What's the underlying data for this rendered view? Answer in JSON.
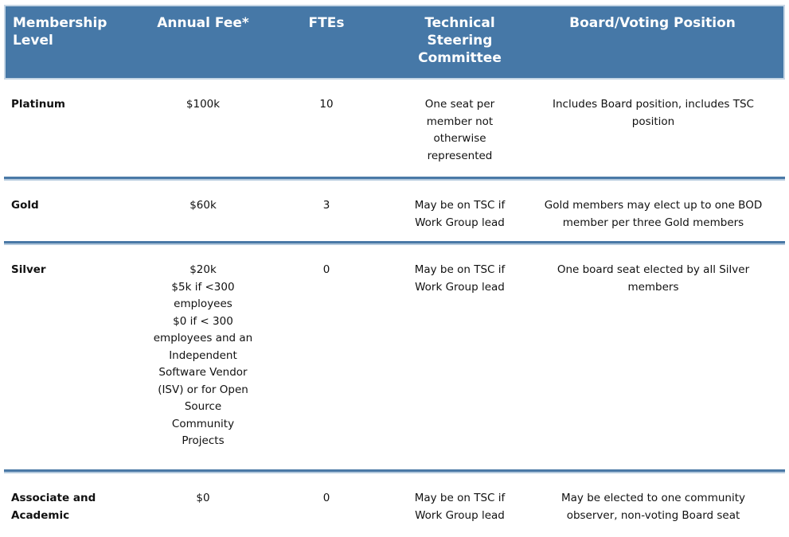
{
  "theme": {
    "header_bg": "#4678a7",
    "header_border": "#c6d6e5",
    "header_text": "#ffffff",
    "separator_dark": "#4a79a6",
    "separator_light": "#b3c9dd",
    "body_text": "#111111",
    "page_bg": "#ffffff"
  },
  "table": {
    "header_columns": [
      {
        "id": "level",
        "lines": [
          "Membership",
          "Level"
        ]
      },
      {
        "id": "fee",
        "lines": [
          "Annual Fee*"
        ]
      },
      {
        "id": "ftes",
        "lines": [
          "FTEs"
        ]
      },
      {
        "id": "tsc",
        "lines": [
          "Technical",
          "Steering",
          "Committee"
        ]
      },
      {
        "id": "board",
        "lines": [
          "Board/Voting Position"
        ]
      }
    ],
    "rows": [
      {
        "level": [
          "Platinum"
        ],
        "fee": [
          "$100k"
        ],
        "ftes": [
          "10"
        ],
        "tsc": [
          "One seat per",
          "member not",
          "otherwise",
          "represented"
        ],
        "board": [
          "Includes Board position, includes TSC",
          "position"
        ]
      },
      {
        "level": [
          "Gold"
        ],
        "fee": [
          "$60k"
        ],
        "ftes": [
          "3"
        ],
        "tsc": [
          "May be on TSC if",
          "Work Group lead"
        ],
        "board": [
          "Gold members may elect up to one BOD",
          "member per three Gold members"
        ]
      },
      {
        "level": [
          "Silver"
        ],
        "fee": [
          "$20k",
          "$5k if <300",
          "employees",
          "$0 if < 300",
          "employees and an",
          "Independent",
          "Software Vendor",
          "(ISV) or for Open",
          "Source",
          "Community",
          "Projects"
        ],
        "ftes": [
          "0"
        ],
        "tsc": [
          "May be on TSC if",
          "Work Group lead"
        ],
        "board": [
          "One board seat elected by all Silver",
          "members"
        ]
      },
      {
        "level": [
          "Associate and",
          "Academic"
        ],
        "fee": [
          "$0"
        ],
        "ftes": [
          "0"
        ],
        "tsc": [
          "May be on TSC if",
          "Work Group lead"
        ],
        "board": [
          "May be elected to one community",
          "observer, non-voting Board seat"
        ]
      }
    ]
  },
  "chart_data": {
    "type": "table",
    "columns": [
      "Membership Level",
      "Annual Fee*",
      "FTEs",
      "Technical Steering Committee",
      "Board/Voting Position"
    ],
    "rows": [
      [
        "Platinum",
        "$100k",
        "10",
        "One seat per member not otherwise represented",
        "Includes Board position, includes TSC position"
      ],
      [
        "Gold",
        "$60k",
        "3",
        "May be on TSC if Work Group lead",
        "Gold members may elect up to one BOD member per three Gold members"
      ],
      [
        "Silver",
        "$20k; $5k if <300 employees; $0 if < 300 employees and an Independent Software Vendor (ISV) or for Open Source Community Projects",
        "0",
        "May be on TSC if Work Group lead",
        "One board seat elected by all Silver members"
      ],
      [
        "Associate and Academic",
        "$0",
        "0",
        "May be on TSC if Work Group lead",
        "May be elected to one community observer, non-voting Board seat"
      ]
    ]
  }
}
